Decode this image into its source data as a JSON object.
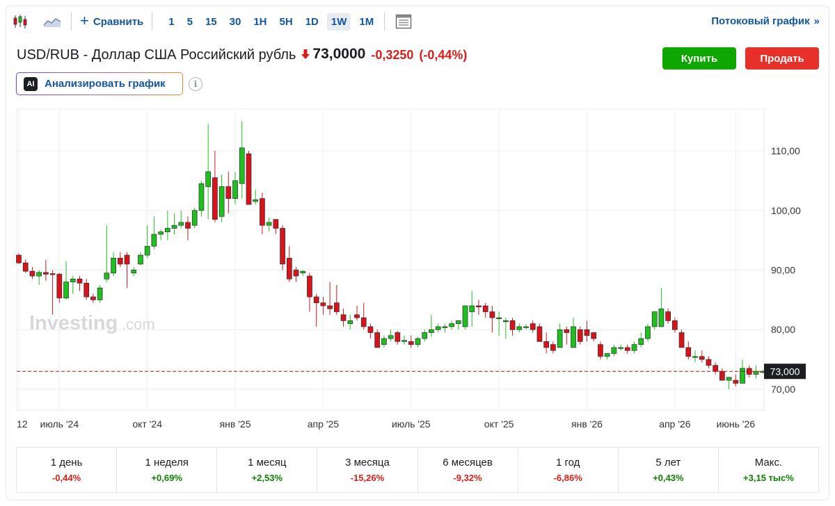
{
  "toolbar": {
    "compare_label": "Сравнить",
    "intervals": [
      "1",
      "5",
      "15",
      "30",
      "1H",
      "5H",
      "1D",
      "1W",
      "1M"
    ],
    "active_interval": "1W",
    "stream_label": "Потоковый график",
    "stream_chevron": "»"
  },
  "instrument": {
    "name": "USD/RUB - Доллар США Российский рубль",
    "price": "73,0000",
    "change": "-0,3250",
    "change_pct": "(-0,44%)"
  },
  "actions": {
    "buy_label": "Купить",
    "sell_label": "Продать",
    "ai_badge": "AI",
    "ai_label": "Анализировать график",
    "info_glyph": "i"
  },
  "colors": {
    "up": "#1fbf1f",
    "down": "#d5141b",
    "price_line": "#a31515",
    "accent": "#1256a0"
  },
  "watermark": {
    "brand": "Investing",
    "suffix": ".com"
  },
  "chart_data": {
    "type": "candlestick",
    "interval": "1W",
    "ylim": [
      66.5,
      117
    ],
    "yticks": [
      70,
      80,
      90,
      100,
      110
    ],
    "ytick_labels": [
      "70,00",
      "80,00",
      "90,00",
      "100,00",
      "110,00"
    ],
    "xtick_labels": [
      "12",
      "июль '24",
      "окт '24",
      "янв '25",
      "апр '25",
      "июль '25",
      "окт '25",
      "янв '26",
      "апр '26",
      "июнь '26"
    ],
    "xtick_index": [
      0,
      6,
      19,
      32,
      45,
      58,
      71,
      84,
      97,
      106
    ],
    "current_price": 73.0,
    "current_price_label": "73,000",
    "candles": [
      [
        92.5,
        92.8,
        91.0,
        91.2
      ],
      [
        91.2,
        91.8,
        89.5,
        89.8
      ],
      [
        89.8,
        90.5,
        88.5,
        89.0
      ],
      [
        89.0,
        90.0,
        87.5,
        89.6
      ],
      [
        89.6,
        91.7,
        88.2,
        89.3
      ],
      [
        89.4,
        90.0,
        82.5,
        89.3
      ],
      [
        89.3,
        89.5,
        84.5,
        85.3
      ],
      [
        85.3,
        91.5,
        85.0,
        88.0
      ],
      [
        88.0,
        89.0,
        86.0,
        88.5
      ],
      [
        88.5,
        89.0,
        86.5,
        87.8
      ],
      [
        87.8,
        88.5,
        85.0,
        85.5
      ],
      [
        85.5,
        86.0,
        84.5,
        85.0
      ],
      [
        85.0,
        87.5,
        84.5,
        87.0
      ],
      [
        88.5,
        97.5,
        88.0,
        89.5
      ],
      [
        89.5,
        93.0,
        89.0,
        92.0
      ],
      [
        92.0,
        93.0,
        90.5,
        91.0
      ],
      [
        92.5,
        93.0,
        87.0,
        91.0
      ],
      [
        89.5,
        90.5,
        89.0,
        90.0
      ],
      [
        91.0,
        93.0,
        90.8,
        92.5
      ],
      [
        92.5,
        97.5,
        92.0,
        94.0
      ],
      [
        94.0,
        99.0,
        93.5,
        96.0
      ],
      [
        96.0,
        96.8,
        95.0,
        96.4
      ],
      [
        96.4,
        100.0,
        95.0,
        97.0
      ],
      [
        97.0,
        99.5,
        96.0,
        97.5
      ],
      [
        97.5,
        100.0,
        97.0,
        98.0
      ],
      [
        98.0,
        99.0,
        95.0,
        97.0
      ],
      [
        97.5,
        100.5,
        97.0,
        100.0
      ],
      [
        100.0,
        105.0,
        99.0,
        104.5
      ],
      [
        104.0,
        114.5,
        98.5,
        106.5
      ],
      [
        105.5,
        110.0,
        98.0,
        98.5
      ],
      [
        99.0,
        106.0,
        98.0,
        104.0
      ],
      [
        104.0,
        106.5,
        99.5,
        102.0
      ],
      [
        102.0,
        106.5,
        101.0,
        105.0
      ],
      [
        104.5,
        115.0,
        102.0,
        110.5
      ],
      [
        109.5,
        110.0,
        101.0,
        101.0
      ],
      [
        101.5,
        103.5,
        101.0,
        101.8
      ],
      [
        102.0,
        103.0,
        96.0,
        97.5
      ],
      [
        97.5,
        98.8,
        96.5,
        98.0
      ],
      [
        98.5,
        98.5,
        96.0,
        97.0
      ],
      [
        97.0,
        97.5,
        90.0,
        91.0
      ],
      [
        92.0,
        94.0,
        88.0,
        88.5
      ],
      [
        90.0,
        90.5,
        88.0,
        89.0
      ],
      [
        89.5,
        90.0,
        89.0,
        89.8
      ],
      [
        89.0,
        89.5,
        83.0,
        85.5
      ],
      [
        85.5,
        86.0,
        80.5,
        84.5
      ],
      [
        84.5,
        85.5,
        82.5,
        84.0
      ],
      [
        84.0,
        88.0,
        82.5,
        83.5
      ],
      [
        84.5,
        87.5,
        82.5,
        83.0
      ],
      [
        82.5,
        83.5,
        80.5,
        81.5
      ],
      [
        81.0,
        82.5,
        80.0,
        81.5
      ],
      [
        82.5,
        84.0,
        81.5,
        82.0
      ],
      [
        82.0,
        84.5,
        80.0,
        80.5
      ],
      [
        80.5,
        81.0,
        78.5,
        79.5
      ],
      [
        79.5,
        80.0,
        77.0,
        77.0
      ],
      [
        77.5,
        79.0,
        77.0,
        78.5
      ],
      [
        78.5,
        80.0,
        78.0,
        79.0
      ],
      [
        79.5,
        79.8,
        77.5,
        78.0
      ],
      [
        78.0,
        79.0,
        77.5,
        78.2
      ],
      [
        78.0,
        79.0,
        77.0,
        77.5
      ],
      [
        77.5,
        78.8,
        77.0,
        78.5
      ],
      [
        78.5,
        80.0,
        78.0,
        79.5
      ],
      [
        79.5,
        82.5,
        78.8,
        80.0
      ],
      [
        80.0,
        81.0,
        79.5,
        80.5
      ],
      [
        80.5,
        81.0,
        79.5,
        80.5
      ],
      [
        80.5,
        81.5,
        80.0,
        81.0
      ],
      [
        81.0,
        81.5,
        80.0,
        81.5
      ],
      [
        80.5,
        84.0,
        80.0,
        84.0
      ],
      [
        83.0,
        86.5,
        80.5,
        84.0
      ],
      [
        84.0,
        85.0,
        82.5,
        83.8
      ],
      [
        84.0,
        84.5,
        82.0,
        83.0
      ],
      [
        83.0,
        84.0,
        79.5,
        82.0
      ],
      [
        82.0,
        83.0,
        79.0,
        82.0
      ],
      [
        81.5,
        82.0,
        78.5,
        81.5
      ],
      [
        81.5,
        82.0,
        79.0,
        80.0
      ],
      [
        80.0,
        81.0,
        79.5,
        80.5
      ],
      [
        80.5,
        81.0,
        80.0,
        80.5
      ],
      [
        81.0,
        81.5,
        79.5,
        80.0
      ],
      [
        80.5,
        81.0,
        78.0,
        78.0
      ],
      [
        78.0,
        79.5,
        76.0,
        77.0
      ],
      [
        77.5,
        78.0,
        76.0,
        76.5
      ],
      [
        77.0,
        81.0,
        77.0,
        80.0
      ],
      [
        80.0,
        80.5,
        77.5,
        79.5
      ],
      [
        77.0,
        82.0,
        77.0,
        80.5
      ],
      [
        80.0,
        80.5,
        77.5,
        78.0
      ],
      [
        80.0,
        81.5,
        78.0,
        79.0
      ],
      [
        79.5,
        79.5,
        78.0,
        78.5
      ],
      [
        77.5,
        78.0,
        75.0,
        75.5
      ],
      [
        75.5,
        76.0,
        75.0,
        76.0
      ],
      [
        76.0,
        77.5,
        75.5,
        77.0
      ],
      [
        77.0,
        77.5,
        76.5,
        77.0
      ],
      [
        77.0,
        77.5,
        76.0,
        76.5
      ],
      [
        76.5,
        78.0,
        76.0,
        77.5
      ],
      [
        77.5,
        79.5,
        77.0,
        78.5
      ],
      [
        78.5,
        81.0,
        78.0,
        80.5
      ],
      [
        80.5,
        83.0,
        80.0,
        83.0
      ],
      [
        80.5,
        87.0,
        80.5,
        83.5
      ],
      [
        83.0,
        83.5,
        81.0,
        81.5
      ],
      [
        81.5,
        82.0,
        79.5,
        80.0
      ],
      [
        79.5,
        80.0,
        77.0,
        77.0
      ],
      [
        77.0,
        78.0,
        75.0,
        75.5
      ],
      [
        75.5,
        76.5,
        74.5,
        75.5
      ],
      [
        75.5,
        76.5,
        74.5,
        75.0
      ],
      [
        75.0,
        75.5,
        73.5,
        74.0
      ],
      [
        74.0,
        74.5,
        72.5,
        73.0
      ],
      [
        73.0,
        73.5,
        71.5,
        71.5
      ],
      [
        71.5,
        72.0,
        70.0,
        72.0
      ],
      [
        71.5,
        72.5,
        70.5,
        71.0
      ],
      [
        71.0,
        75.0,
        71.0,
        73.5
      ],
      [
        73.5,
        74.0,
        72.0,
        72.5
      ],
      [
        72.5,
        74.0,
        71.8,
        73.0
      ],
      [
        73.0,
        73.3,
        72.6,
        73.0
      ]
    ]
  },
  "performance": [
    {
      "label": "1 день",
      "value": "-0,44%",
      "dir": "neg"
    },
    {
      "label": "1 неделя",
      "value": "+0,69%",
      "dir": "pos"
    },
    {
      "label": "1 месяц",
      "value": "+2,53%",
      "dir": "pos"
    },
    {
      "label": "3 месяца",
      "value": "-15,26%",
      "dir": "neg"
    },
    {
      "label": "6 месяцев",
      "value": "-9,32%",
      "dir": "neg"
    },
    {
      "label": "1 год",
      "value": "-6,86%",
      "dir": "neg"
    },
    {
      "label": "5 лет",
      "value": "+0,43%",
      "dir": "pos"
    },
    {
      "label": "Макс.",
      "value": "+3,15 тыс%",
      "dir": "pos"
    }
  ]
}
